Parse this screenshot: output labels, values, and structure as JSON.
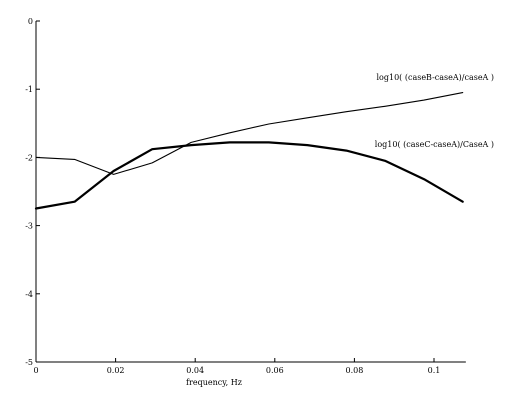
{
  "chart_data": {
    "type": "line",
    "title": "",
    "xlabel": "frequency, Hz",
    "ylabel": "",
    "xlim": [
      0,
      0.108
    ],
    "ylim": [
      -5,
      0
    ],
    "x_ticks": [
      0,
      0.02,
      0.04,
      0.06,
      0.08,
      0.1
    ],
    "x_tick_labels": [
      "0",
      "0.02",
      "0.04",
      "0.06",
      "0.08",
      "0.1"
    ],
    "y_ticks": [
      0,
      -1,
      -2,
      -3,
      -4,
      -5
    ],
    "y_tick_labels": [
      "0",
      "-1",
      "-2",
      "-3",
      "-4",
      "-5"
    ],
    "grid": false,
    "legend": "none",
    "series": [
      {
        "label": "log10( (caseB-caseA)/caseA )",
        "color": "#000000",
        "weight": "thin",
        "x": [
          0,
          0.0097,
          0.0195,
          0.0292,
          0.039,
          0.0487,
          0.0585,
          0.0682,
          0.078,
          0.0877,
          0.0975,
          0.1072
        ],
        "y": [
          -2.0,
          -2.03,
          -2.25,
          -2.08,
          -1.78,
          -1.64,
          -1.51,
          -1.42,
          -1.33,
          -1.25,
          -1.16,
          -1.05
        ]
      },
      {
        "label": "log10( (caseC-caseA)/CaseA )",
        "color": "#000000",
        "weight": "thick",
        "x": [
          0,
          0.0097,
          0.0195,
          0.0292,
          0.039,
          0.0487,
          0.0585,
          0.0682,
          0.078,
          0.0877,
          0.0975,
          0.1072
        ],
        "y": [
          -2.75,
          -2.65,
          -2.2,
          -1.88,
          -1.82,
          -1.78,
          -1.78,
          -1.82,
          -1.9,
          -2.05,
          -2.32,
          -2.65
        ]
      }
    ]
  }
}
